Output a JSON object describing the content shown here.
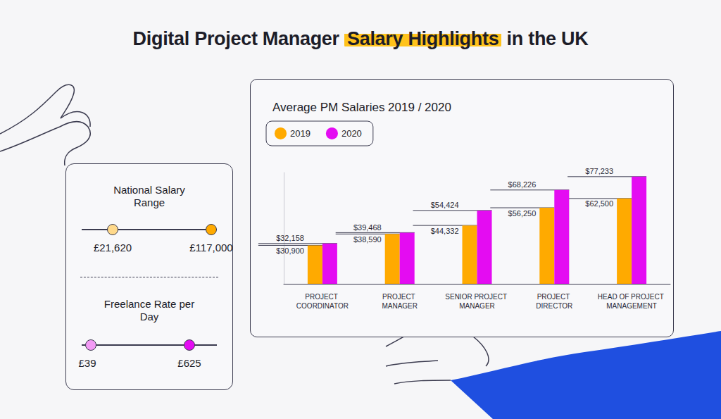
{
  "header": {
    "before": "Digital Project Manager",
    "highlight": "Salary Highlights",
    "after": "in the UK"
  },
  "panel": {
    "salary": {
      "title": "National Salary Range",
      "low": "£21,620",
      "high": "£117,000"
    },
    "freelance": {
      "title": "Freelance Rate per Day",
      "low": "£39",
      "high": "£625"
    }
  },
  "chart_data": {
    "type": "bar",
    "title": "Average PM Salaries 2019 / 2020",
    "categories": [
      "PROJECT COORDINATOR",
      "PROJECT MANAGER",
      "SENIOR PROJECT MANAGER",
      "PROJECT DIRECTOR",
      "HEAD OF PROJECT MANAGEMENT"
    ],
    "series": [
      {
        "name": "2019",
        "color": "#ffaa00",
        "values": [
          30900,
          38590,
          44332,
          56250,
          62500
        ],
        "value_labels": [
          "$30,900",
          "$38,590",
          "$44,332",
          "$56,250",
          "$62,500"
        ]
      },
      {
        "name": "2020",
        "color": "#e40cf2",
        "values": [
          32158,
          39468,
          54424,
          68226,
          77233
        ],
        "value_labels": [
          "$32,158",
          "$39,468",
          "$54,424",
          "$68,226",
          "$77,233"
        ]
      }
    ],
    "ylim": [
      5000,
      80000
    ],
    "grid": false,
    "legend": "top-left",
    "data_labels": true,
    "tick_labels": "x"
  }
}
